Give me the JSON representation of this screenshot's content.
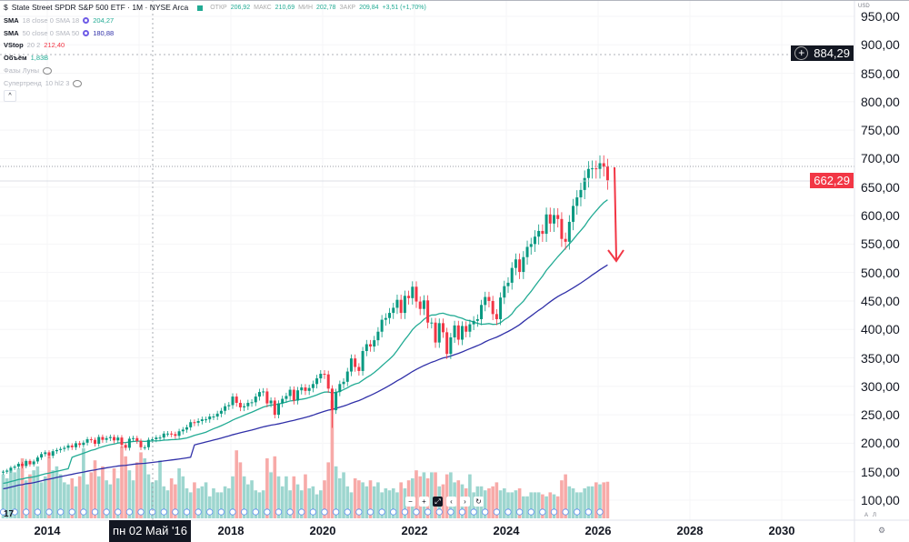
{
  "header": {
    "symbol_icon": "dollar-icon",
    "title": "State Street SPDR S&P 500 ETF · 1M · NYSE Arca",
    "ohlc": {
      "open_label": "ОТКР",
      "open": "206,92",
      "high_label": "МАКС",
      "high": "210,69",
      "low_label": "МИН",
      "low": "202,78",
      "close_label": "ЗАКР",
      "close": "209,84",
      "change": "+3,51 (+1,70%)"
    }
  },
  "indicators": [
    {
      "label": "SMA",
      "params": "18 close 0 SMA 18",
      "value": "204,27",
      "color": "#22ab94"
    },
    {
      "label": "SMA",
      "params": "50 close 0 SMA 50",
      "value": "180,88",
      "color": "#3030a8"
    },
    {
      "label": "VStop",
      "params": "20 2",
      "value": "212,40",
      "color": "#f23645"
    },
    {
      "label": "Объём",
      "params": "",
      "value": "1,83B",
      "color": "#22ab94"
    },
    {
      "label": "Фазы Луны",
      "params": "",
      "value": "",
      "hidden": true
    },
    {
      "label": "Супертренд",
      "params": "10 hl2 3",
      "value": "",
      "hidden": true
    }
  ],
  "price_axis": {
    "currency": "USD",
    "ticks": [
      "950,00",
      "900,00",
      "850,00",
      "800,00",
      "750,00",
      "700,00",
      "650,00",
      "600,00",
      "550,00",
      "500,00",
      "450,00",
      "400,00",
      "350,00",
      "300,00",
      "250,00",
      "200,00",
      "150,00",
      "100,00"
    ],
    "crosshair_price": "884,29",
    "last_price": "662,29",
    "last_price_color": "#f23645",
    "auto_label": "А",
    "log_label": "Л"
  },
  "time_axis": {
    "ticks": [
      "2014",
      "2016",
      "2018",
      "2020",
      "2022",
      "2024",
      "2026",
      "2028",
      "2030"
    ],
    "crosshair_date": "пн 02 Май '16"
  },
  "nav_buttons": [
    "−",
    "+",
    "⤢",
    "‹",
    "›",
    "↻"
  ],
  "chart_data": {
    "type": "candlestick",
    "interval": "1M",
    "start": "2013-01",
    "ylim": [
      100,
      950
    ],
    "colors": {
      "up": "#089981",
      "down": "#f23645",
      "sma18": "#22ab94",
      "sma50": "#3030a8",
      "vol_up": "#9dd6cf",
      "vol_down": "#f7aaa8"
    },
    "close": [
      150,
      152,
      157,
      159,
      164,
      160,
      169,
      163,
      168,
      175,
      181,
      184,
      178,
      186,
      188,
      190,
      192,
      196,
      193,
      200,
      197,
      201,
      207,
      206,
      199,
      211,
      206,
      209,
      211,
      205,
      210,
      197,
      192,
      208,
      209,
      204,
      193,
      193,
      206,
      207,
      210,
      210,
      217,
      217,
      216,
      213,
      221,
      224,
      228,
      237,
      236,
      239,
      242,
      242,
      247,
      247,
      252,
      257,
      265,
      267,
      282,
      271,
      263,
      265,
      271,
      272,
      282,
      290,
      291,
      270,
      275,
      250,
      270,
      278,
      283,
      294,
      275,
      293,
      298,
      292,
      297,
      304,
      314,
      322,
      321,
      296,
      258,
      290,
      304,
      308,
      326,
      349,
      334,
      327,
      362,
      374,
      370,
      381,
      396,
      417,
      420,
      429,
      438,
      452,
      429,
      459,
      455,
      475,
      449,
      436,
      451,
      412,
      412,
      377,
      411,
      395,
      357,
      386,
      407,
      382,
      406,
      396,
      409,
      415,
      418,
      443,
      457,
      450,
      427,
      418,
      456,
      476,
      482,
      508,
      523,
      501,
      527,
      545,
      550,
      563,
      573,
      568,
      602,
      586,
      601,
      594,
      559,
      554,
      589,
      617,
      632,
      645,
      666,
      682,
      683,
      682,
      692,
      686,
      662
    ],
    "volume_billions": [
      2.2,
      2.0,
      2.4,
      2.3,
      2.5,
      3.0,
      1.9,
      2.2,
      2.4,
      2.6,
      1.8,
      2.1,
      3.1,
      2.4,
      2.6,
      2.2,
      1.8,
      1.7,
      2.0,
      1.6,
      2.1,
      3.5,
      1.7,
      2.3,
      2.9,
      2.1,
      2.6,
      1.9,
      1.7,
      2.5,
      2.0,
      3.6,
      3.1,
      2.4,
      1.9,
      2.8,
      3.3,
      3.0,
      2.2,
      1.8,
      1.9,
      2.9,
      1.6,
      1.4,
      2.0,
      1.7,
      2.5,
      2.1,
      1.5,
      1.3,
      1.8,
      1.5,
      1.6,
      1.8,
      1.1,
      1.5,
      1.3,
      1.3,
      1.6,
      1.5,
      2.1,
      3.4,
      2.8,
      2.1,
      1.7,
      1.9,
      1.4,
      1.3,
      1.4,
      3.0,
      2.3,
      3.1,
      2.1,
      1.6,
      2.1,
      1.4,
      2.1,
      1.7,
      1.4,
      2.2,
      1.5,
      1.6,
      1.2,
      1.4,
      1.9,
      2.8,
      5.9,
      2.6,
      2.0,
      2.3,
      1.6,
      1.3,
      2.0,
      1.9,
      1.8,
      1.6,
      1.9,
      1.6,
      1.8,
      1.3,
      1.5,
      1.4,
      1.5,
      1.3,
      1.8,
      1.5,
      1.9,
      2.0,
      2.4,
      2.1,
      2.3,
      2.0,
      2.3,
      2.3,
      1.6,
      1.7,
      2.2,
      2.3,
      1.8,
      1.9,
      1.7,
      1.5,
      2.2,
      1.3,
      1.6,
      1.6,
      1.4,
      1.5,
      1.6,
      1.8,
      1.4,
      1.5,
      1.3,
      1.3,
      1.4,
      1.5,
      1.1,
      1.1,
      1.3,
      1.3,
      1.3,
      1.2,
      1.1,
      1.3,
      1.2,
      1.1,
      1.9,
      2.2,
      1.6,
      1.5,
      1.3,
      1.3,
      1.5,
      1.6,
      1.6,
      1.8,
      1.7,
      1.8,
      1.83
    ]
  }
}
